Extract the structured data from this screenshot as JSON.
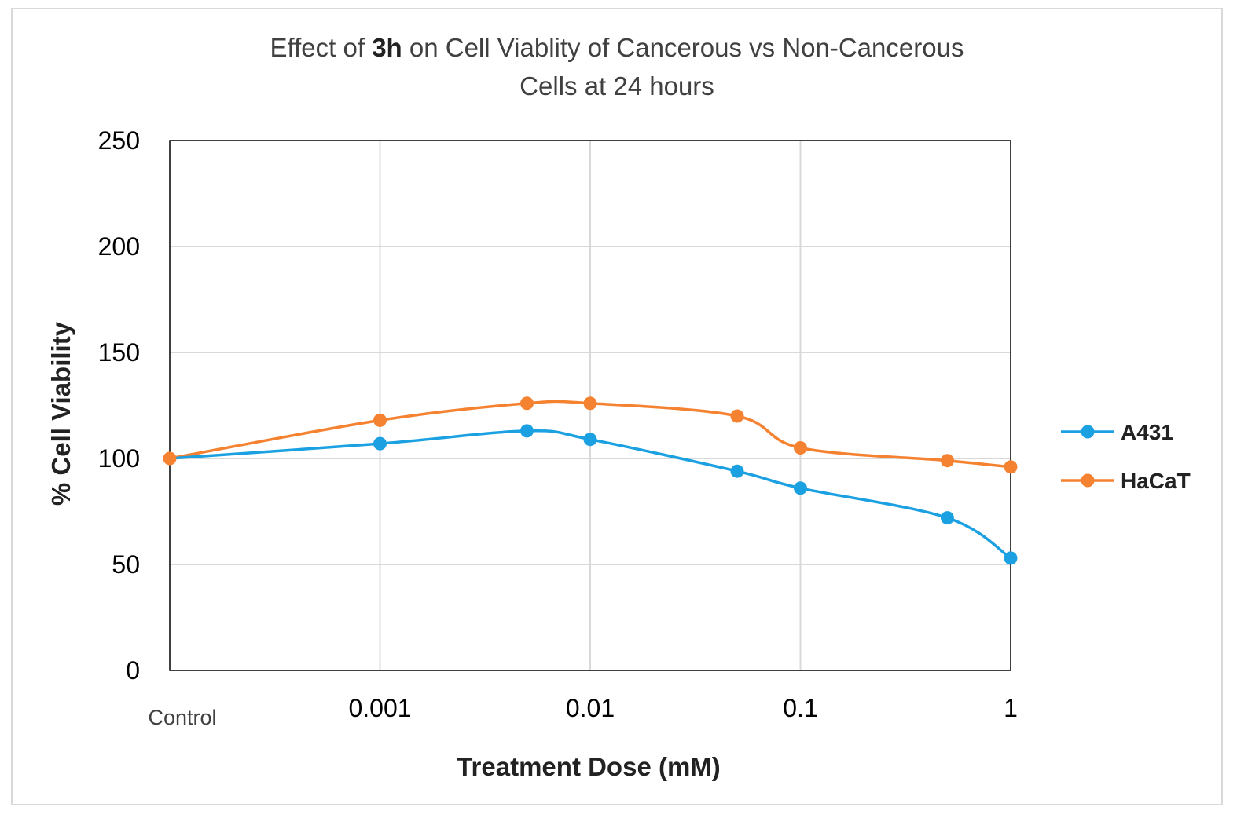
{
  "chart_data": {
    "type": "line",
    "title_parts": [
      "Effect of ",
      "3h",
      " on Cell Viablity of Cancerous vs Non-Cancerous"
    ],
    "title_line2": "Cells at 24 hours",
    "xlabel": "Treatment Dose (mM)",
    "ylabel": "% Cell Viability",
    "ylim": [
      0,
      250
    ],
    "yticks": [
      "0",
      "50",
      "100",
      "150",
      "200",
      "250"
    ],
    "xscale": "log",
    "xlim_log": [
      -4,
      0
    ],
    "control_label": "Control",
    "xticks": [
      {
        "label": "0.001",
        "log": -3
      },
      {
        "label": "0.01",
        "log": -2
      },
      {
        "label": "0.1",
        "log": -1
      },
      {
        "label": "1",
        "log": 0
      }
    ],
    "x": [
      "Control",
      0.001,
      0.005,
      0.01,
      0.05,
      0.1,
      0.5,
      1
    ],
    "x_log": [
      -4,
      -3,
      -2.301,
      -2,
      -1.301,
      -1,
      -0.301,
      0
    ],
    "series": [
      {
        "name": "A431",
        "color": "#1ba1e2",
        "values": [
          100,
          107,
          113,
          109,
          94,
          86,
          72,
          53
        ]
      },
      {
        "name": "HaCaT",
        "color": "#f58231",
        "values": [
          100,
          118,
          126,
          126,
          120,
          105,
          99,
          96
        ]
      }
    ],
    "grid": true,
    "legend": "right"
  }
}
